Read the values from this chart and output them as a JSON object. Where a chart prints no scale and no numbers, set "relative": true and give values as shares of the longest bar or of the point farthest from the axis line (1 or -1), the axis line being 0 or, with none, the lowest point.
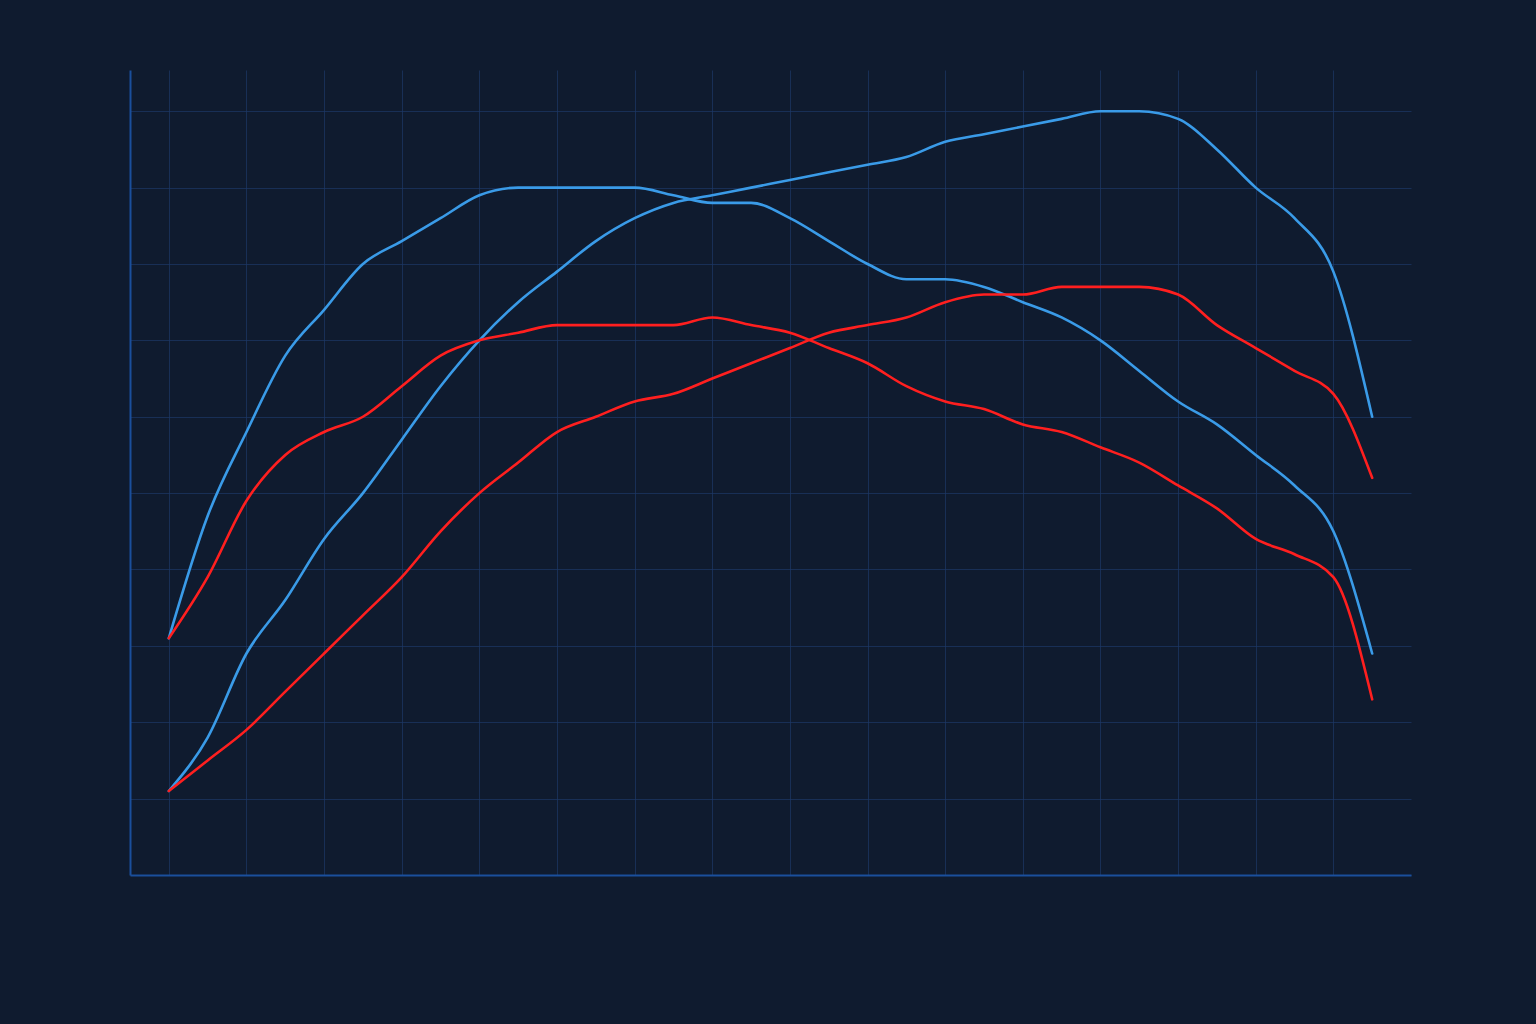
{
  "chart_data": {
    "type": "line",
    "relative": true,
    "grid": true,
    "line_style": "solid",
    "categories": [
      null,
      null,
      null,
      null,
      null,
      null,
      null,
      null,
      null,
      null,
      null,
      null,
      null,
      null,
      null,
      null,
      null,
      null,
      null,
      null,
      null,
      null,
      null,
      null,
      null,
      null,
      null,
      null,
      null,
      null,
      null,
      null
    ],
    "series": [
      {
        "color": "#3a9be8",
        "values": [
          0.31,
          0.47,
          0.58,
          0.68,
          0.74,
          0.8,
          0.83,
          0.86,
          0.89,
          0.9,
          0.9,
          0.9,
          0.9,
          0.89,
          0.88,
          0.88,
          0.86,
          0.83,
          0.8,
          0.78,
          0.78,
          0.77,
          0.75,
          0.73,
          0.7,
          0.66,
          0.62,
          0.59,
          0.55,
          0.51,
          0.45,
          0.29
        ]
      },
      {
        "color": "#3a9be8",
        "values": [
          0.11,
          0.18,
          0.29,
          0.36,
          0.44,
          0.5,
          0.57,
          0.64,
          0.7,
          0.75,
          0.79,
          0.83,
          0.86,
          0.88,
          0.89,
          0.9,
          0.91,
          0.92,
          0.93,
          0.94,
          0.96,
          0.97,
          0.98,
          0.99,
          1.0,
          1.0,
          0.99,
          0.95,
          0.9,
          0.86,
          0.79,
          0.6
        ]
      },
      {
        "color": "#ff1f1f",
        "values": [
          0.31,
          0.39,
          0.49,
          0.55,
          0.58,
          0.6,
          0.64,
          0.68,
          0.7,
          0.71,
          0.72,
          0.72,
          0.72,
          0.72,
          0.73,
          0.72,
          0.71,
          0.69,
          0.67,
          0.64,
          0.62,
          0.61,
          0.59,
          0.58,
          0.56,
          0.54,
          0.51,
          0.48,
          0.44,
          0.42,
          0.39,
          0.23
        ]
      },
      {
        "color": "#ff1f1f",
        "values": [
          0.11,
          0.15,
          0.19,
          0.24,
          0.29,
          0.34,
          0.39,
          0.45,
          0.5,
          0.54,
          0.58,
          0.6,
          0.62,
          0.63,
          0.65,
          0.67,
          0.69,
          0.71,
          0.72,
          0.73,
          0.75,
          0.76,
          0.76,
          0.77,
          0.77,
          0.77,
          0.76,
          0.72,
          0.69,
          0.66,
          0.63,
          0.52
        ]
      }
    ]
  }
}
